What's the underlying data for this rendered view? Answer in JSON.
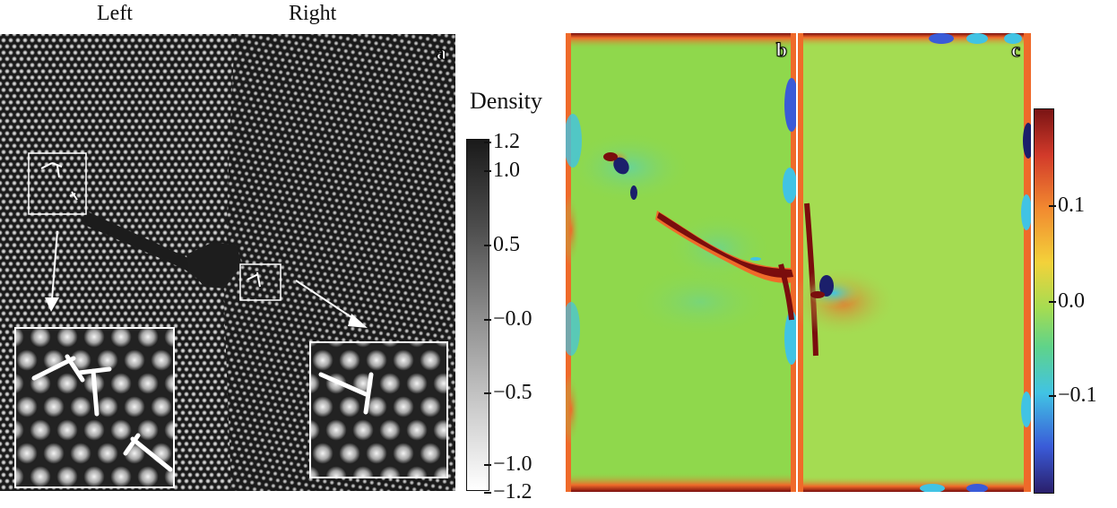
{
  "figure": {
    "column_labels": {
      "left": "Left",
      "right": "Right"
    },
    "panels": {
      "a": "a",
      "b": "b",
      "c": "c"
    },
    "density_colorbar": {
      "title": "Density",
      "ticks": [
        "1.2",
        "1.0",
        "0.5",
        "−0.0",
        "−0.5",
        "−1.0",
        "−1.2"
      ],
      "range": [
        -1.2,
        1.2
      ],
      "colors": {
        "high": "#1a1a1a",
        "low": "#ffffff"
      }
    },
    "strain_colorbar": {
      "ticks": [
        "0.1",
        "0.0",
        "−0.1"
      ],
      "colormap": "rainbow"
    },
    "colors": {
      "field_green": "#8fd84c",
      "dark_red": "#7a0d0d",
      "orange": "#ef6a2a",
      "blue": "#3a5bd8",
      "navy": "#1b1f6b",
      "cyan": "#41c3e4",
      "crystal_background": "#1a1a1a",
      "white": "#ffffff"
    }
  }
}
